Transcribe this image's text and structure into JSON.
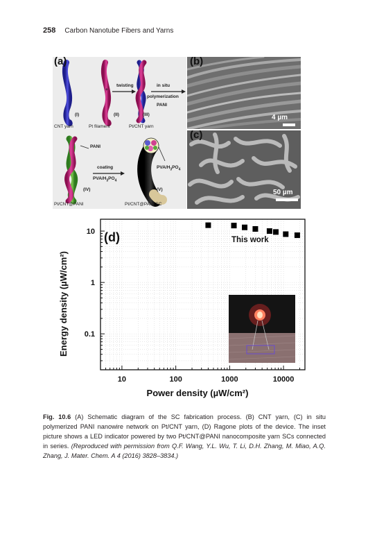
{
  "header": {
    "page_number": "258",
    "running_title": "Carbon Nanotube Fibers and Yarns"
  },
  "panels": {
    "a": {
      "label": "(a)",
      "twisting": "twisting",
      "in_situ": "in situ",
      "polymerization": "polymerization",
      "pani_top": "PANI",
      "plus": "+",
      "step_i": "(I)",
      "step_ii": "(II)",
      "step_iii": "(III)",
      "cnt_yarn": "CNT yarn",
      "pt_filament": "Pt filament",
      "pt_cnt_yarn": "Pt/CNT yarn",
      "pani_mid": "PANI",
      "coating": "coating",
      "pva_h3po4_arrow": "PVA/H3PO4",
      "pva_h3po4_right": "PVA/H3PO4",
      "step_iv": "(IV)",
      "step_v": "(V)",
      "pt_cnt_pani": "Pt/CNT@PANI",
      "pt_cnt_pani_sc": "Pt/CNT@PANI SC"
    },
    "b": {
      "label": "(b)",
      "scale": "4 µm"
    },
    "c": {
      "label": "(c)",
      "scale": "50 µm"
    },
    "d": {
      "label": "(d)"
    }
  },
  "chart_data": {
    "type": "scatter",
    "x_scale": "log",
    "y_scale": "log",
    "xlim": [
      4,
      25000
    ],
    "ylim": [
      0.02,
      17
    ],
    "xticks": [
      10,
      100,
      1000,
      10000
    ],
    "xtick_labels": [
      "10",
      "100",
      "1000",
      "10000"
    ],
    "yticks": [
      0.1,
      1,
      10
    ],
    "ytick_labels": [
      "0.1",
      "1",
      "10"
    ],
    "xlabel": "Power density (µW/cm²)",
    "ylabel": "Energy density (µW/cm²)",
    "grid": true,
    "annotation": "This work",
    "series": [
      {
        "name": "This work",
        "x": [
          400,
          1200,
          1900,
          3000,
          5500,
          7200,
          11000,
          18000
        ],
        "y": [
          13.0,
          12.8,
          11.8,
          11.0,
          10.0,
          9.6,
          8.7,
          8.3
        ]
      }
    ]
  },
  "caption": {
    "fig_label": "Fig. 10.6",
    "text": "(A) Schematic diagram of the SC fabrication process. (B) CNT yarn, (C) in situ polymerized PANI nanowire network on Pt/CNT yarn, (D) Ragone plots of the device. The inset picture shows a LED indicator powered by two Pt/CNT@PANI nanocomposite yarn SCs connected in series.",
    "credit": "(Reproduced with permission from Q.F. Wang, Y.L. Wu, T. Li, D.H. Zhang, M. Miao, A.Q. Zhang, J. Mater. Chem. A 4 (2016) 3828–3834.)"
  },
  "colors": {
    "cnt_yarn": "#3a3ab8",
    "pt_filament": "#c81e78",
    "pani_green": "#57a63c",
    "sc_body": "#1a1a1a",
    "sc_tip": "#d8c79a"
  }
}
